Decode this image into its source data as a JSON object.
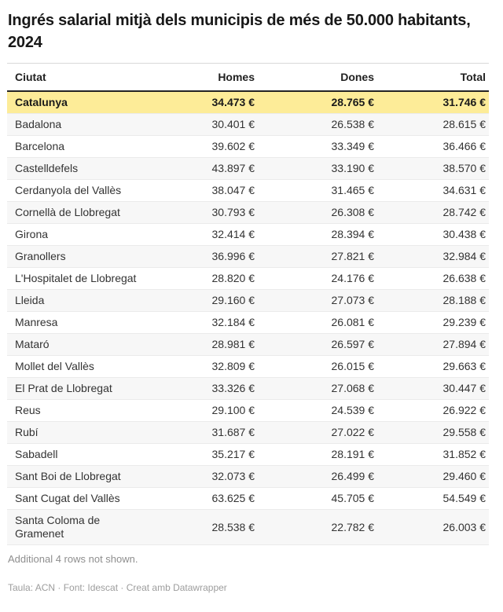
{
  "header": {
    "title": "Ingrés salarial mitjà dels municipis de més de 50.000 habitants, 2024"
  },
  "chart_data": {
    "type": "table",
    "title": "Ingrés salarial mitjà dels municipis de més de 50.000 habitants, 2024",
    "columns": [
      "Ciutat",
      "Homes",
      "Dones",
      "Total"
    ],
    "highlight_row": "Catalunya",
    "rows": [
      [
        "Catalunya",
        "34.473 €",
        "28.765 €",
        "31.746 €"
      ],
      [
        "Badalona",
        "30.401 €",
        "26.538 €",
        "28.615 €"
      ],
      [
        "Barcelona",
        "39.602 €",
        "33.349 €",
        "36.466 €"
      ],
      [
        "Castelldefels",
        "43.897 €",
        "33.190 €",
        "38.570 €"
      ],
      [
        "Cerdanyola del Vallès",
        "38.047 €",
        "31.465 €",
        "34.631 €"
      ],
      [
        "Cornellà de Llobregat",
        "30.793 €",
        "26.308 €",
        "28.742 €"
      ],
      [
        "Girona",
        "32.414 €",
        "28.394 €",
        "30.438 €"
      ],
      [
        "Granollers",
        "36.996 €",
        "27.821 €",
        "32.984 €"
      ],
      [
        "L'Hospitalet de Llobregat",
        "28.820 €",
        "24.176 €",
        "26.638 €"
      ],
      [
        "Lleida",
        "29.160 €",
        "27.073 €",
        "28.188 €"
      ],
      [
        "Manresa",
        "32.184 €",
        "26.081 €",
        "29.239 €"
      ],
      [
        "Mataró",
        "28.981 €",
        "26.597 €",
        "27.894 €"
      ],
      [
        "Mollet del Vallès",
        "32.809 €",
        "26.015 €",
        "29.663 €"
      ],
      [
        "El Prat de Llobregat",
        "33.326 €",
        "27.068 €",
        "30.447 €"
      ],
      [
        "Reus",
        "29.100 €",
        "24.539 €",
        "26.922 €"
      ],
      [
        "Rubí",
        "31.687 €",
        "27.022 €",
        "29.558 €"
      ],
      [
        "Sabadell",
        "35.217 €",
        "28.191 €",
        "31.852 €"
      ],
      [
        "Sant Boi de Llobregat",
        "32.073 €",
        "26.499 €",
        "29.460 €"
      ],
      [
        "Sant Cugat del Vallès",
        "63.625 €",
        "45.705 €",
        "54.549 €"
      ],
      [
        "Santa Coloma de Gramenet",
        "28.538 €",
        "22.782 €",
        "26.003 €"
      ]
    ],
    "colors": {
      "highlight_bg": "#fdec98",
      "zebra_bg": "#f7f7f7",
      "header_border": "#242424"
    },
    "layout": {
      "numeric_columns_alignment": "right",
      "city_column_alignment": "left"
    }
  },
  "note": "Additional 4 rows not shown.",
  "footer": "Taula: ACN · Font: Idescat · Creat amb Datawrapper"
}
